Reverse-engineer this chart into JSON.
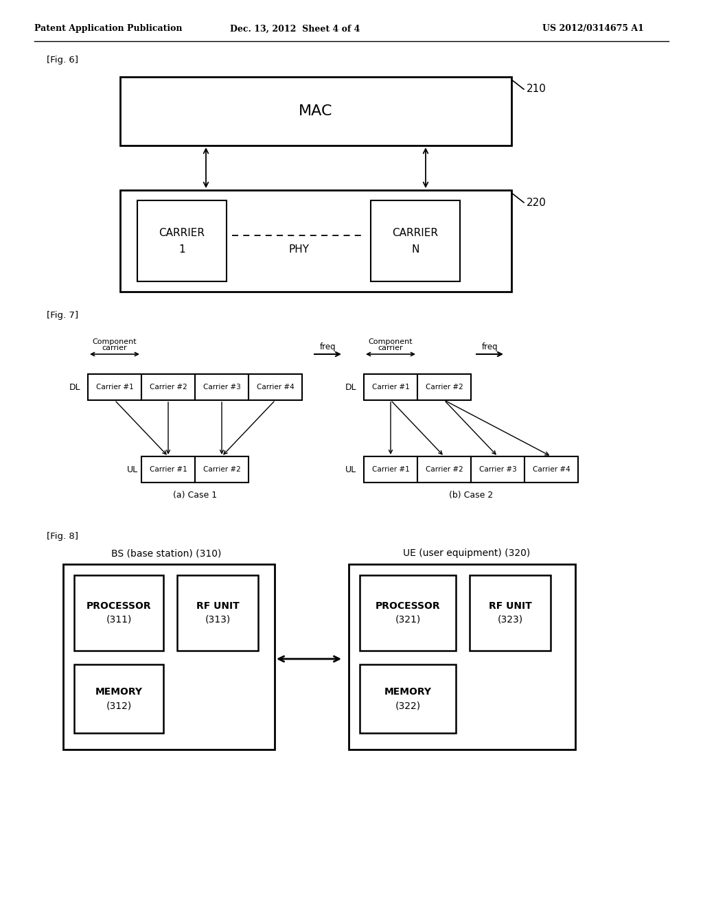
{
  "header_left": "Patent Application Publication",
  "header_center": "Dec. 13, 2012  Sheet 4 of 4",
  "header_right": "US 2012/0314675 A1",
  "fig6_label": "[Fig. 6]",
  "fig7_label": "[Fig. 7]",
  "fig8_label": "[Fig. 8]",
  "background_color": "#ffffff",
  "text_color": "#000000"
}
